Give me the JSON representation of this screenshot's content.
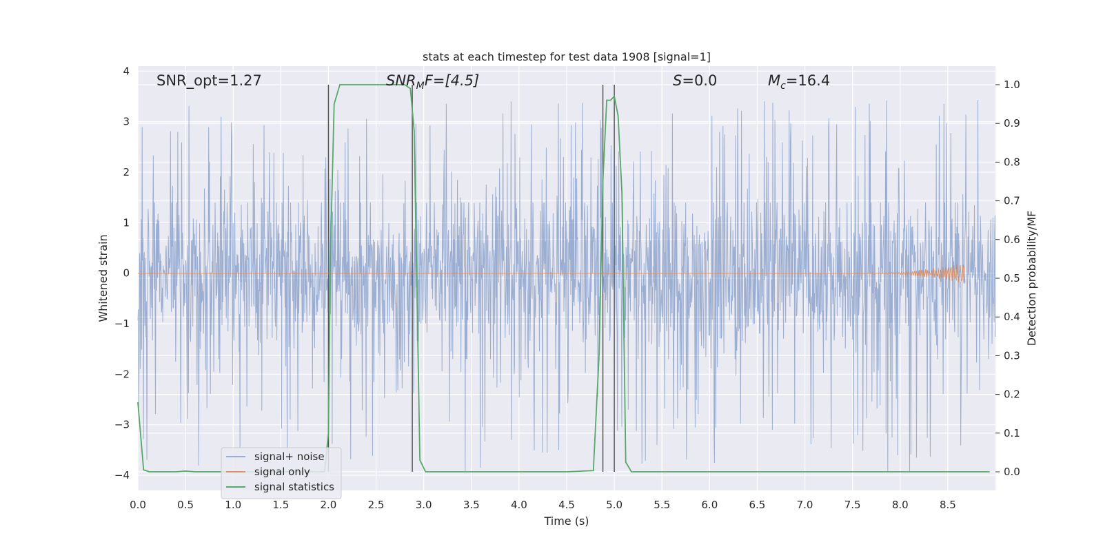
{
  "chart_data": {
    "type": "line",
    "title": "stats at each timestep for test data 1908 [signal=1]",
    "xlabel": "Time (s)",
    "ylabel_left": "Whitened strain",
    "ylabel_right": "Detection probability/MF",
    "xlim": [
      0,
      9.0
    ],
    "ylim_left": [
      -4.3,
      4.1
    ],
    "ylim_right": [
      -0.048,
      1.048
    ],
    "xticks": [
      0.0,
      0.5,
      1.0,
      1.5,
      2.0,
      2.5,
      3.0,
      3.5,
      4.0,
      4.5,
      5.0,
      5.5,
      6.0,
      6.5,
      7.0,
      7.5,
      8.0,
      8.5
    ],
    "xtick_labels": [
      "0.0",
      "0.5",
      "1.0",
      "1.5",
      "2.0",
      "2.5",
      "3.0",
      "3.5",
      "4.0",
      "4.5",
      "5.0",
      "5.5",
      "6.0",
      "6.5",
      "7.0",
      "7.5",
      "8.0",
      "8.5"
    ],
    "yticks_left": [
      -4,
      -3,
      -2,
      -1,
      0,
      1,
      2,
      3,
      4
    ],
    "ytick_labels_left": [
      "−4",
      "−3",
      "−2",
      "−1",
      "0",
      "1",
      "2",
      "3",
      "4"
    ],
    "yticks_right": [
      0.0,
      0.1,
      0.2,
      0.3,
      0.4,
      0.5,
      0.6,
      0.7,
      0.8,
      0.9,
      1.0
    ],
    "ytick_labels_right": [
      "0.0",
      "0.1",
      "0.2",
      "0.3",
      "0.4",
      "0.5",
      "0.6",
      "0.7",
      "0.8",
      "0.9",
      "1.0"
    ],
    "annotations": {
      "snr_opt": "SNR_opt=1.27",
      "snr_mf_base": "SNR",
      "snr_mf_sub": "M",
      "snr_mf_rest": "F=[4.5]",
      "s_var": "S",
      "s_rest": "=0.0",
      "mc_base": "M",
      "mc_sub": "c",
      "mc_rest": "=16.4"
    },
    "legend": {
      "position": "lower-left",
      "entries": [
        "signal+ noise",
        "signal only",
        "signal statistics"
      ]
    },
    "colors": {
      "background": "#eaeaf2",
      "grid": "#ffffff",
      "noise": "#4c72b0",
      "signal": "#dd8452",
      "stat": "#55a868",
      "vline": "#555555"
    },
    "vertical_lines": [
      2.0,
      2.88,
      4.88,
      5.0
    ],
    "noise_series": {
      "name": "signal+ noise",
      "x_range": [
        0,
        9.0
      ],
      "samples": 2000,
      "core_range": [
        -1.7,
        1.4
      ],
      "peak_range": [
        -4.0,
        3.5
      ]
    },
    "signal_series": {
      "name": "signal only",
      "x_range": [
        0,
        8.68
      ],
      "chirp_start": 7.6,
      "max_amplitude": 0.22
    },
    "stat_series": {
      "name": "signal statistics",
      "x": [
        0.0,
        0.06,
        0.12,
        0.2,
        0.3,
        0.4,
        0.5,
        0.6,
        0.8,
        1.0,
        1.5,
        1.96,
        2.0,
        2.02,
        2.06,
        2.12,
        2.5,
        2.8,
        2.86,
        2.9,
        2.96,
        3.02,
        3.5,
        4.0,
        4.5,
        4.78,
        4.84,
        4.88,
        4.92,
        4.96,
        5.0,
        5.04,
        5.08,
        5.12,
        5.18,
        5.5,
        6.0,
        7.0,
        8.0,
        8.94
      ],
      "y": [
        0.18,
        0.005,
        0.0,
        0.0,
        0.0,
        0.0,
        0.002,
        0.0,
        0.0,
        0.0,
        0.0,
        0.0,
        0.1,
        0.55,
        0.95,
        1.0,
        1.0,
        1.0,
        0.99,
        0.88,
        0.03,
        0.0,
        0.0,
        0.0,
        0.0,
        0.003,
        0.3,
        0.75,
        0.96,
        0.96,
        0.97,
        0.92,
        0.72,
        0.025,
        0.0,
        0.0,
        0.0,
        0.0,
        0.0,
        0.0
      ]
    }
  }
}
